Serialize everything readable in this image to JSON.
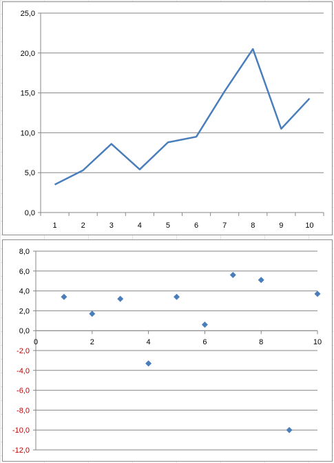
{
  "chart_data": [
    {
      "type": "line",
      "x": [
        1,
        2,
        3,
        4,
        5,
        6,
        7,
        8,
        9,
        10
      ],
      "categories": [
        "1",
        "2",
        "3",
        "4",
        "5",
        "6",
        "7",
        "8",
        "9",
        "10"
      ],
      "series": [
        {
          "values": [
            3.5,
            5.3,
            8.6,
            5.4,
            8.8,
            9.5,
            15.2,
            20.5,
            10.5,
            14.3
          ],
          "color": "#4a7ebb"
        }
      ],
      "ylim": [
        0,
        25
      ],
      "yticks": [
        0,
        5,
        10,
        15,
        20,
        25
      ],
      "ytick_labels": [
        "0,0",
        "5,0",
        "10,0",
        "15,0",
        "20,0",
        "25,0"
      ],
      "grid": true,
      "legend": "none"
    },
    {
      "type": "scatter",
      "series": [
        {
          "x": [
            1,
            2,
            3,
            4,
            5,
            6,
            7,
            8,
            9,
            10
          ],
          "y": [
            3.4,
            1.7,
            3.2,
            -3.3,
            3.4,
            0.6,
            5.6,
            5.1,
            -10.0,
            3.7
          ],
          "color": "#4a7ebb",
          "marker": "diamond"
        }
      ],
      "xlim": [
        0,
        10
      ],
      "xticks": [
        0,
        2,
        4,
        6,
        8,
        10
      ],
      "xtick_labels": [
        "0",
        "2",
        "4",
        "6",
        "8",
        "10"
      ],
      "ylim": [
        -12,
        8
      ],
      "yticks": [
        8,
        6,
        4,
        2,
        0,
        -2,
        -4,
        -6,
        -8,
        -10,
        -12
      ],
      "ytick_labels": [
        "8,0",
        "6,0",
        "4,0",
        "2,0",
        "0,0",
        "-2,0",
        "-4,0",
        "-6,0",
        "-8,0",
        "-10,0",
        "-12,0"
      ],
      "negative_label_color": "#c00000",
      "positive_label_color": "#000000",
      "grid": true,
      "legend": "none"
    }
  ]
}
